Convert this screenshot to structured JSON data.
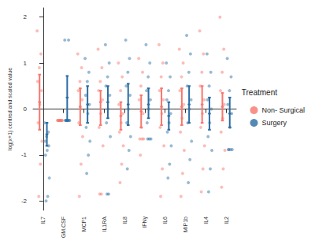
{
  "chart_data": {
    "type": "scatter",
    "y_label": "log(x+1) centred and scaled value",
    "legend_title": "Treatment",
    "legend": "right",
    "grid": false,
    "categories": [
      "IL7",
      "GM.CSF",
      "MCP1",
      "IL1RA",
      "IL8",
      "IFNγ",
      "IL6",
      "MIP1b",
      "IL4",
      "IL2"
    ],
    "ylim": [
      -2.2,
      2.2
    ],
    "yticks": [
      -2,
      -1,
      0,
      1,
      2
    ],
    "series": [
      {
        "name": "Non- Surgical",
        "color": "#F8766D",
        "values": [
          [
            1.7,
            1.2,
            0.9,
            0.6,
            0.4,
            0.1,
            -0.3,
            -0.7,
            -1.2,
            -1.9
          ],
          [
            -0.25,
            -0.25,
            -0.25,
            -0.25,
            -0.25,
            -0.25,
            -0.25,
            -0.25,
            -0.25,
            -0.25
          ],
          [
            1.2,
            0.9,
            0.6,
            0.4,
            0.2,
            0.0,
            -0.3,
            -0.6,
            -1.2,
            -1.9
          ],
          [
            1.3,
            0.9,
            0.6,
            0.4,
            0.2,
            -0.1,
            -0.4,
            -0.8,
            -1.85,
            -1.85
          ],
          [
            1.0,
            0.7,
            0.4,
            0.1,
            -0.1,
            -0.3,
            -0.5,
            -0.8,
            -1.2,
            -1.6
          ],
          [
            1.1,
            0.8,
            0.5,
            0.2,
            -0.1,
            -0.4,
            -0.65,
            -0.65,
            -0.65,
            -1.0
          ],
          [
            1.4,
            1.0,
            0.7,
            0.4,
            0.2,
            -0.1,
            -0.4,
            -0.8,
            -1.3,
            -1.9
          ],
          [
            1.3,
            1.0,
            0.7,
            0.4,
            0.1,
            -0.2,
            -0.5,
            -0.9,
            -1.4,
            -1.9
          ],
          [
            1.7,
            1.2,
            0.8,
            0.5,
            0.2,
            -0.1,
            -0.4,
            -0.8,
            -1.3,
            -1.8
          ],
          [
            2.0,
            1.3,
            0.8,
            0.4,
            0.1,
            -0.2,
            -0.5,
            -0.9,
            -1.3,
            -1.7
          ]
        ],
        "mean": [
          0.15,
          -0.25,
          0.05,
          0.15,
          -0.15,
          -0.05,
          0.05,
          0.05,
          0.1,
          0.05
        ],
        "lower": [
          -0.45,
          -0.25,
          -0.35,
          -0.35,
          -0.45,
          -0.4,
          -0.35,
          -0.35,
          -0.3,
          -0.25
        ],
        "upper": [
          0.75,
          -0.25,
          0.45,
          0.4,
          0.15,
          0.3,
          0.45,
          0.45,
          0.5,
          0.35
        ]
      },
      {
        "name": "Surgery",
        "color": "#2B6CA3",
        "values": [
          [
            -0.3,
            -0.5,
            -0.6,
            -0.7,
            -0.8,
            -0.9,
            -1.0,
            -1.5,
            -1.9,
            -2.0
          ],
          [
            1.5,
            1.5,
            -0.25,
            -0.25,
            -0.25,
            -0.25,
            -0.25,
            -0.25,
            -0.25,
            -0.25
          ],
          [
            1.1,
            0.8,
            0.6,
            0.3,
            0.1,
            -0.1,
            -0.4,
            -0.7,
            -1.0,
            -1.4
          ],
          [
            1.4,
            1.0,
            0.7,
            0.5,
            0.3,
            0.0,
            -0.3,
            -0.6,
            -1.85,
            -1.85
          ],
          [
            1.5,
            1.1,
            0.8,
            0.5,
            0.3,
            0.0,
            -0.3,
            -0.6,
            -0.9,
            -1.3
          ],
          [
            1.4,
            1.0,
            0.7,
            0.4,
            0.2,
            0.0,
            -0.3,
            -0.65,
            -0.65,
            -0.65
          ],
          [
            1.0,
            0.7,
            0.4,
            0.2,
            -0.1,
            -0.3,
            -0.5,
            -0.8,
            -1.2,
            -1.5
          ],
          [
            1.6,
            1.2,
            0.8,
            0.5,
            0.2,
            0.0,
            -0.3,
            -0.7,
            -1.1,
            -1.6
          ],
          [
            1.2,
            0.8,
            0.5,
            0.2,
            0.0,
            -0.3,
            -0.6,
            -0.9,
            -1.3,
            -1.8
          ],
          [
            1.1,
            0.7,
            0.4,
            0.1,
            -0.1,
            -0.4,
            -0.88,
            -0.88,
            -0.88,
            -0.88
          ]
        ],
        "mean": [
          -0.55,
          0.25,
          0.1,
          0.15,
          0.1,
          0.1,
          -0.15,
          0.1,
          -0.1,
          -0.1
        ],
        "lower": [
          -0.8,
          -0.25,
          -0.3,
          -0.2,
          -0.35,
          -0.2,
          -0.45,
          -0.3,
          -0.45,
          -0.4
        ],
        "upper": [
          -0.3,
          0.72,
          0.5,
          0.5,
          0.55,
          0.45,
          0.15,
          0.5,
          0.25,
          0.25
        ]
      }
    ]
  }
}
